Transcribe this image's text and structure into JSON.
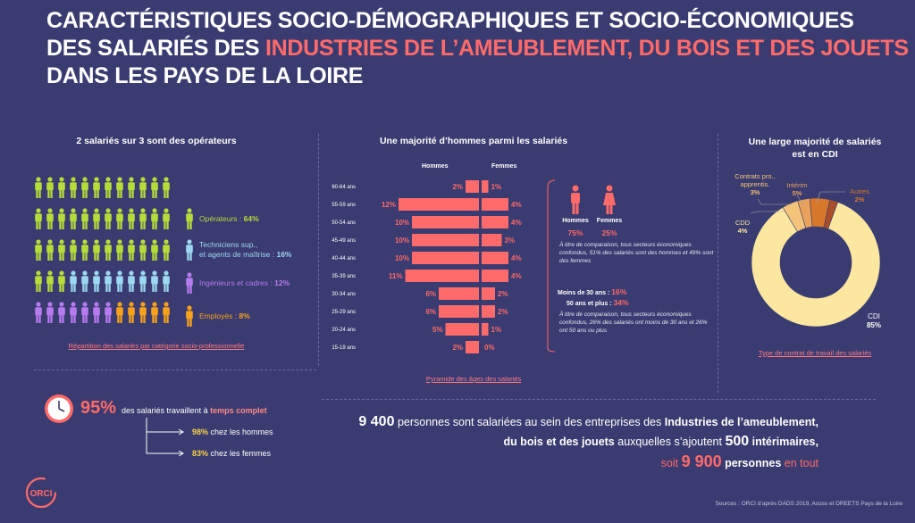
{
  "title": {
    "line1": "CARACTÉRISTIQUES SOCIO-DÉMOGRAPHIQUES ET SOCIO-ÉCONOMIQUES",
    "line2_a": "DES SALARIÉS DES ",
    "line2_b": "INDUSTRIES DE L’AMEUBLEMENT, DU BOIS ET DES JOUETS",
    "line3": "DANS LES PAYS DE LA LOIRE"
  },
  "csp": {
    "heading": "2 salariés sur 3 sont des opérateurs",
    "legend": [
      {
        "label": "Opérateurs : ",
        "value": "64%",
        "color": "#b6dc3a"
      },
      {
        "label": "Techniciens sup.,",
        "label2": "et agents de maîtrise : ",
        "value": "16%",
        "color": "#9dd8f0"
      },
      {
        "label": "Ingénieurs et cadres : ",
        "value": "12%",
        "color": "#b77bf0"
      },
      {
        "label": "Employés : ",
        "value": "8%",
        "color": "#f7a21a"
      }
    ],
    "source_link": "Répartition des salariés par catégorie socio-professionnelle",
    "people_colors": [
      "#b6dc3a",
      "#9dd8f0",
      "#b77bf0",
      "#f7a21a"
    ]
  },
  "temps": {
    "percent": "95%",
    "text_a": "des salariés travaillent à ",
    "text_b": "temps complet",
    "hommes_val": "98%",
    "hommes_txt": " chez les hommes",
    "femmes_val": "83%",
    "femmes_txt": " chez les femmes"
  },
  "pyramid": {
    "heading": "Une majorité d’hommes parmi les salariés",
    "hommes_label": "Hommes",
    "femmes_label": "Femmes",
    "source_link": "Pyramide des âges des salariés",
    "bar_color": "#ff6a6a"
  },
  "chart_data": [
    {
      "type": "bar",
      "title": "Une majorité d’hommes parmi les salariés",
      "categories": [
        "60-64 ans",
        "55-59 ans",
        "50-54 ans",
        "45-49 ans",
        "40-44 ans",
        "35-39 ans",
        "30-34 ans",
        "25-29 ans",
        "20-24 ans",
        "15-19 ans"
      ],
      "series": [
        {
          "name": "Hommes",
          "values": [
            2,
            12,
            10,
            10,
            10,
            11,
            6,
            6,
            5,
            2
          ]
        },
        {
          "name": "Femmes",
          "values": [
            1,
            4,
            4,
            3,
            4,
            4,
            2,
            2,
            1,
            0
          ]
        }
      ],
      "value_labels_h": [
        "2%",
        "12%",
        "10%",
        "10%",
        "10%",
        "11%",
        "6%",
        "6%",
        "5%",
        "2%"
      ],
      "value_labels_f": [
        "1%",
        "4%",
        "4%",
        "3%",
        "4%",
        "4%",
        "2%",
        "2%",
        "1%",
        "0%"
      ]
    },
    {
      "type": "pie",
      "title": "Une large majorité de salariés est en CDI",
      "labels": [
        "CDI",
        "CDD",
        "Contrats pro., apprentis.",
        "Intérim",
        "Autres"
      ],
      "values": [
        85,
        4,
        3,
        5,
        2
      ],
      "colors": [
        "#fbe7a0",
        "#f3c47a",
        "#e9a25c",
        "#d7772c",
        "#a94e2a"
      ]
    }
  ],
  "gender": {
    "hommes_label": "Hommes",
    "hommes_val": "75%",
    "femmes_label": "Femmes",
    "femmes_val": "25%",
    "note1": "À titre de comparaison, tous secteurs économiques confondus, 51% des salariés sont des hommes et 49% sont des femmes",
    "moins30_label": "Moins de 30 ans : ",
    "moins30_val": "16%",
    "plus50_label": "50 ans et plus : ",
    "plus50_val": "34%",
    "note2": "À titre de comparaison, tous secteurs économiques confondus, 26% des salariés ont moins de 30 ans et 26% ont 50 ans ou plus"
  },
  "contrat": {
    "heading1": "Une large majorité de salariés",
    "heading2": "est en CDI",
    "lbl_contrats": "Contrats pro.,",
    "lbl_contrats2": "apprentis.",
    "val_contrats": "3%",
    "lbl_interim": "Intérim",
    "val_interim": "5%",
    "lbl_autres": "Autres",
    "val_autres": "2%",
    "lbl_cdd": "CDD",
    "val_cdd": "4%",
    "lbl_cdi": "CDI",
    "val_cdi": "85%",
    "source_link": "Type de contrat de travail des salariés"
  },
  "summary": {
    "n1": "9 400",
    "t1": " personnes sont salariées au sein des entreprises des ",
    "t1b": "Industries de l’ameublement,",
    "t2b": "du bois et des jouets",
    "t2": " auxquelles s’ajoutent ",
    "n2": "500",
    "t2c": " intérimaires,",
    "t3": "soit ",
    "n3": "9 900",
    "t3b": " personnes",
    "t3c": " en tout"
  },
  "logo": "ORCI",
  "sources": "Sources : ORCI d’après DADS 2019, Acoss et DREETS Pays de la Loire"
}
